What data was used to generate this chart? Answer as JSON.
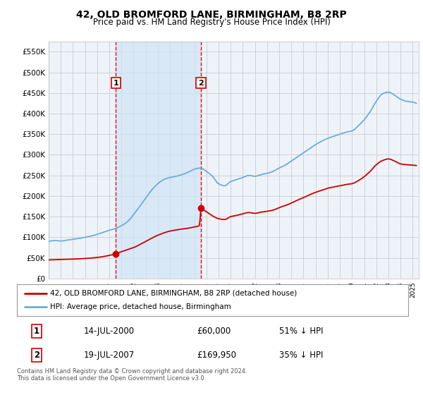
{
  "title": "42, OLD BROMFORD LANE, BIRMINGHAM, B8 2RP",
  "subtitle": "Price paid vs. HM Land Registry's House Price Index (HPI)",
  "ylim": [
    0,
    575000
  ],
  "yticks": [
    0,
    50000,
    100000,
    150000,
    200000,
    250000,
    300000,
    350000,
    400000,
    450000,
    500000,
    550000
  ],
  "ytick_labels": [
    "£0",
    "£50K",
    "£100K",
    "£150K",
    "£200K",
    "£250K",
    "£300K",
    "£350K",
    "£400K",
    "£450K",
    "£500K",
    "£550K"
  ],
  "sale1_date": 2000.54,
  "sale1_price": 60000,
  "sale1_label": "1",
  "sale2_date": 2007.55,
  "sale2_price": 169950,
  "sale2_label": "2",
  "hpi_color": "#6baed6",
  "price_color": "#cc0000",
  "vline_color": "#ee0000",
  "grid_color": "#cccccc",
  "background_color": "#ffffff",
  "plot_bg_color": "#eef3fa",
  "shade_color": "#d0e4f5",
  "legend_label_price": "42, OLD BROMFORD LANE, BIRMINGHAM, B8 2RP (detached house)",
  "legend_label_hpi": "HPI: Average price, detached house, Birmingham",
  "table_row1": [
    "1",
    "14-JUL-2000",
    "£60,000",
    "51% ↓ HPI"
  ],
  "table_row2": [
    "2",
    "19-JUL-2007",
    "£169,950",
    "35% ↓ HPI"
  ],
  "footnote": "Contains HM Land Registry data © Crown copyright and database right 2024.\nThis data is licensed under the Open Government Licence v3.0.",
  "xmin": 1995.0,
  "xmax": 2025.5,
  "hpi_anchors": [
    [
      1995.0,
      90000
    ],
    [
      1995.5,
      92000
    ],
    [
      1996.0,
      91000
    ],
    [
      1996.5,
      93000
    ],
    [
      1997.0,
      95000
    ],
    [
      1997.5,
      97000
    ],
    [
      1998.0,
      100000
    ],
    [
      1998.5,
      103000
    ],
    [
      1999.0,
      107000
    ],
    [
      1999.5,
      112000
    ],
    [
      2000.0,
      117000
    ],
    [
      2000.5,
      121000
    ],
    [
      2001.0,
      128000
    ],
    [
      2001.5,
      138000
    ],
    [
      2002.0,
      155000
    ],
    [
      2002.5,
      175000
    ],
    [
      2003.0,
      195000
    ],
    [
      2003.5,
      215000
    ],
    [
      2004.0,
      230000
    ],
    [
      2004.5,
      240000
    ],
    [
      2005.0,
      245000
    ],
    [
      2005.5,
      248000
    ],
    [
      2006.0,
      252000
    ],
    [
      2006.5,
      258000
    ],
    [
      2007.0,
      265000
    ],
    [
      2007.5,
      268000
    ],
    [
      2008.0,
      260000
    ],
    [
      2008.5,
      248000
    ],
    [
      2009.0,
      230000
    ],
    [
      2009.5,
      225000
    ],
    [
      2010.0,
      235000
    ],
    [
      2010.5,
      240000
    ],
    [
      2011.0,
      245000
    ],
    [
      2011.5,
      250000
    ],
    [
      2012.0,
      248000
    ],
    [
      2012.5,
      252000
    ],
    [
      2013.0,
      255000
    ],
    [
      2013.5,
      260000
    ],
    [
      2014.0,
      268000
    ],
    [
      2014.5,
      275000
    ],
    [
      2015.0,
      285000
    ],
    [
      2015.5,
      295000
    ],
    [
      2016.0,
      305000
    ],
    [
      2016.5,
      315000
    ],
    [
      2017.0,
      325000
    ],
    [
      2017.5,
      333000
    ],
    [
      2018.0,
      340000
    ],
    [
      2018.5,
      345000
    ],
    [
      2019.0,
      350000
    ],
    [
      2019.5,
      355000
    ],
    [
      2020.0,
      358000
    ],
    [
      2020.5,
      370000
    ],
    [
      2021.0,
      385000
    ],
    [
      2021.5,
      405000
    ],
    [
      2022.0,
      430000
    ],
    [
      2022.5,
      448000
    ],
    [
      2023.0,
      452000
    ],
    [
      2023.5,
      445000
    ],
    [
      2024.0,
      435000
    ],
    [
      2024.5,
      430000
    ],
    [
      2025.0,
      428000
    ],
    [
      2025.3,
      425000
    ]
  ],
  "price_anchors_before_sale1": [
    [
      1995.0,
      45000
    ],
    [
      1996.0,
      46000
    ],
    [
      1997.0,
      47000
    ],
    [
      1998.0,
      48500
    ],
    [
      1999.0,
      51000
    ],
    [
      2000.0,
      56000
    ],
    [
      2000.54,
      60000
    ]
  ],
  "price_anchors_between": [
    [
      2000.54,
      60000
    ],
    [
      2001.0,
      65000
    ],
    [
      2002.0,
      75000
    ],
    [
      2003.0,
      90000
    ],
    [
      2004.0,
      105000
    ],
    [
      2005.0,
      115000
    ],
    [
      2006.0,
      120000
    ],
    [
      2006.5,
      122000
    ],
    [
      2007.0,
      125000
    ],
    [
      2007.4,
      128000
    ],
    [
      2007.55,
      169950
    ]
  ],
  "price_anchors_after_sale2": [
    [
      2007.55,
      169950
    ],
    [
      2008.0,
      162000
    ],
    [
      2008.5,
      152000
    ],
    [
      2009.0,
      145000
    ],
    [
      2009.5,
      143000
    ],
    [
      2010.0,
      150000
    ],
    [
      2010.5,
      153000
    ],
    [
      2011.0,
      157000
    ],
    [
      2011.5,
      160000
    ],
    [
      2012.0,
      158000
    ],
    [
      2012.5,
      161000
    ],
    [
      2013.0,
      163000
    ],
    [
      2013.5,
      166000
    ],
    [
      2014.0,
      172000
    ],
    [
      2014.5,
      177000
    ],
    [
      2015.0,
      183000
    ],
    [
      2015.5,
      190000
    ],
    [
      2016.0,
      196000
    ],
    [
      2016.5,
      203000
    ],
    [
      2017.0,
      209000
    ],
    [
      2017.5,
      214000
    ],
    [
      2018.0,
      219000
    ],
    [
      2018.5,
      222000
    ],
    [
      2019.0,
      225000
    ],
    [
      2019.5,
      228000
    ],
    [
      2020.0,
      230000
    ],
    [
      2020.5,
      237000
    ],
    [
      2021.0,
      247000
    ],
    [
      2021.5,
      260000
    ],
    [
      2022.0,
      276000
    ],
    [
      2022.5,
      286000
    ],
    [
      2023.0,
      290000
    ],
    [
      2023.5,
      285000
    ],
    [
      2024.0,
      278000
    ],
    [
      2024.5,
      276000
    ],
    [
      2025.0,
      275000
    ],
    [
      2025.3,
      274000
    ]
  ]
}
